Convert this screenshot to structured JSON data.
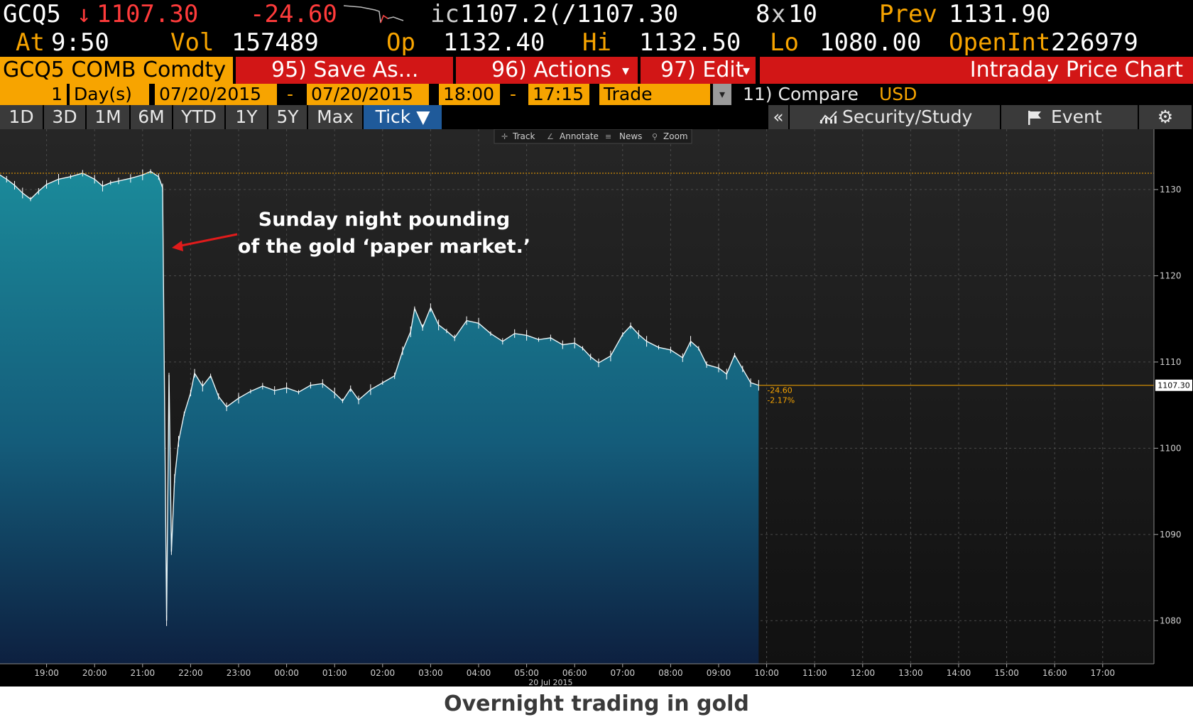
{
  "quote": {
    "ticker": "GCQ5",
    "arrow": "↓",
    "last": "1107.30",
    "change": "-24.60",
    "ic_label": "ic",
    "bid_ask": "1107.2(/1107.30",
    "size": "8",
    "size_x": "x",
    "size2": "10",
    "prev_label": "Prev",
    "prev": "1131.90",
    "at_label": "At",
    "time": "9:50",
    "vol_label": "Vol",
    "vol": "157489",
    "op_label": "Op",
    "op": "1132.40",
    "hi_label": "Hi",
    "hi": "1132.50",
    "lo_label": "Lo",
    "lo": "1080.00",
    "oi_label": "OpenInt",
    "oi": "226979"
  },
  "funcbar": {
    "security": "GCQ5 COMB Comdty",
    "save_as": "95) Save As...",
    "actions": "96) Actions",
    "edit": "97) Edit",
    "dropdown_glyph": "▾",
    "title": "Intraday Price Chart"
  },
  "range": {
    "count": "1",
    "unit": "Day(s)",
    "start_date": "07/20/2015",
    "end_date": "07/20/2015",
    "start_time": "18:00",
    "end_time": "17:15",
    "dash": "-",
    "type": "Trade",
    "compare": "11) Compare",
    "currency": "USD"
  },
  "tabs": [
    "1D",
    "3D",
    "1M",
    "6M",
    "YTD",
    "1Y",
    "5Y",
    "Max",
    "Tick ▼"
  ],
  "tools": {
    "collapse": "«",
    "security_study": "Security/Study",
    "event": "Event",
    "settings_glyph": "⚙"
  },
  "chart_toolbar": [
    "Track",
    "Annotate",
    "News",
    "Zoom"
  ],
  "annotation": {
    "line1": "Sunday night pounding",
    "line2": "of the gold ‘paper market.’"
  },
  "chart_data": {
    "type": "area",
    "x_ticks": [
      "19:00",
      "20:00",
      "21:00",
      "22:00",
      "23:00",
      "00:00",
      "01:00",
      "02:00",
      "03:00",
      "04:00",
      "05:00",
      "06:00",
      "07:00",
      "08:00",
      "09:00",
      "10:00",
      "11:00",
      "12:00",
      "13:00",
      "14:00",
      "15:00",
      "16:00",
      "17:00"
    ],
    "x_date_label": "20 Jul 2015",
    "y_ticks": [
      1080,
      1090,
      1100,
      1110,
      1120,
      1130
    ],
    "ylim": [
      1075,
      1137
    ],
    "prev_close": 1131.9,
    "last": 1107.3,
    "last_label": "1107.30",
    "change_label": "-24.60",
    "pct_label": "-2.17%",
    "x_start": "18:00",
    "x_end": "17:15",
    "series": [
      {
        "values": [
          [
            "18:00",
            1131.8
          ],
          [
            "18:10",
            1131.2
          ],
          [
            "18:20",
            1130.5
          ],
          [
            "18:30",
            1129.6
          ],
          [
            "18:40",
            1128.9
          ],
          [
            "18:50",
            1129.8
          ],
          [
            "19:00",
            1130.6
          ],
          [
            "19:15",
            1131.2
          ],
          [
            "19:30",
            1131.5
          ],
          [
            "19:45",
            1131.9
          ],
          [
            "20:00",
            1131.2
          ],
          [
            "20:10",
            1130.4
          ],
          [
            "20:20",
            1130.8
          ],
          [
            "20:30",
            1131.0
          ],
          [
            "20:45",
            1131.3
          ],
          [
            "21:00",
            1131.7
          ],
          [
            "21:10",
            1132.1
          ],
          [
            "21:20",
            1131.5
          ],
          [
            "21:25",
            1130.2
          ],
          [
            "21:30",
            1080.0
          ],
          [
            "21:33",
            1108.5
          ],
          [
            "21:36",
            1088.0
          ],
          [
            "21:40",
            1096.5
          ],
          [
            "21:45",
            1100.8
          ],
          [
            "21:52",
            1104.0
          ],
          [
            "22:00",
            1106.4
          ],
          [
            "22:05",
            1108.7
          ],
          [
            "22:15",
            1107.2
          ],
          [
            "22:25",
            1108.4
          ],
          [
            "22:35",
            1106.0
          ],
          [
            "22:45",
            1104.8
          ],
          [
            "23:00",
            1105.8
          ],
          [
            "23:15",
            1106.6
          ],
          [
            "23:30",
            1107.2
          ],
          [
            "23:45",
            1106.7
          ],
          [
            "00:00",
            1107.0
          ],
          [
            "00:15",
            1106.5
          ],
          [
            "00:30",
            1107.3
          ],
          [
            "00:45",
            1107.5
          ],
          [
            "01:00",
            1106.4
          ],
          [
            "01:10",
            1105.5
          ],
          [
            "01:20",
            1106.9
          ],
          [
            "01:30",
            1105.6
          ],
          [
            "01:45",
            1106.8
          ],
          [
            "02:00",
            1107.6
          ],
          [
            "02:15",
            1108.4
          ],
          [
            "02:25",
            1111.3
          ],
          [
            "02:35",
            1113.5
          ],
          [
            "02:40",
            1116.2
          ],
          [
            "02:50",
            1114.0
          ],
          [
            "03:00",
            1116.3
          ],
          [
            "03:10",
            1114.3
          ],
          [
            "03:20",
            1113.6
          ],
          [
            "03:30",
            1112.8
          ],
          [
            "03:45",
            1114.8
          ],
          [
            "04:00",
            1114.5
          ],
          [
            "04:15",
            1113.3
          ],
          [
            "04:30",
            1112.4
          ],
          [
            "04:45",
            1113.3
          ],
          [
            "05:00",
            1113.1
          ],
          [
            "05:15",
            1112.6
          ],
          [
            "05:30",
            1112.8
          ],
          [
            "05:45",
            1112.0
          ],
          [
            "06:00",
            1112.2
          ],
          [
            "06:10",
            1111.6
          ],
          [
            "06:20",
            1110.6
          ],
          [
            "06:30",
            1109.9
          ],
          [
            "06:45",
            1110.7
          ],
          [
            "07:00",
            1113.2
          ],
          [
            "07:10",
            1114.2
          ],
          [
            "07:20",
            1113.2
          ],
          [
            "07:30",
            1112.4
          ],
          [
            "07:45",
            1111.7
          ],
          [
            "08:00",
            1111.4
          ],
          [
            "08:15",
            1110.5
          ],
          [
            "08:25",
            1112.4
          ],
          [
            "08:35",
            1111.6
          ],
          [
            "08:45",
            1109.7
          ],
          [
            "09:00",
            1109.3
          ],
          [
            "09:10",
            1108.6
          ],
          [
            "09:20",
            1110.8
          ],
          [
            "09:30",
            1109.2
          ],
          [
            "09:40",
            1107.6
          ],
          [
            "09:50",
            1107.3
          ]
        ]
      }
    ]
  },
  "caption": "Overnight trading in gold",
  "colors": {
    "orange": "#f7a400",
    "red_bar": "#d21616",
    "area_top": "#1b8a9a",
    "area_bottom": "#0d2040"
  }
}
